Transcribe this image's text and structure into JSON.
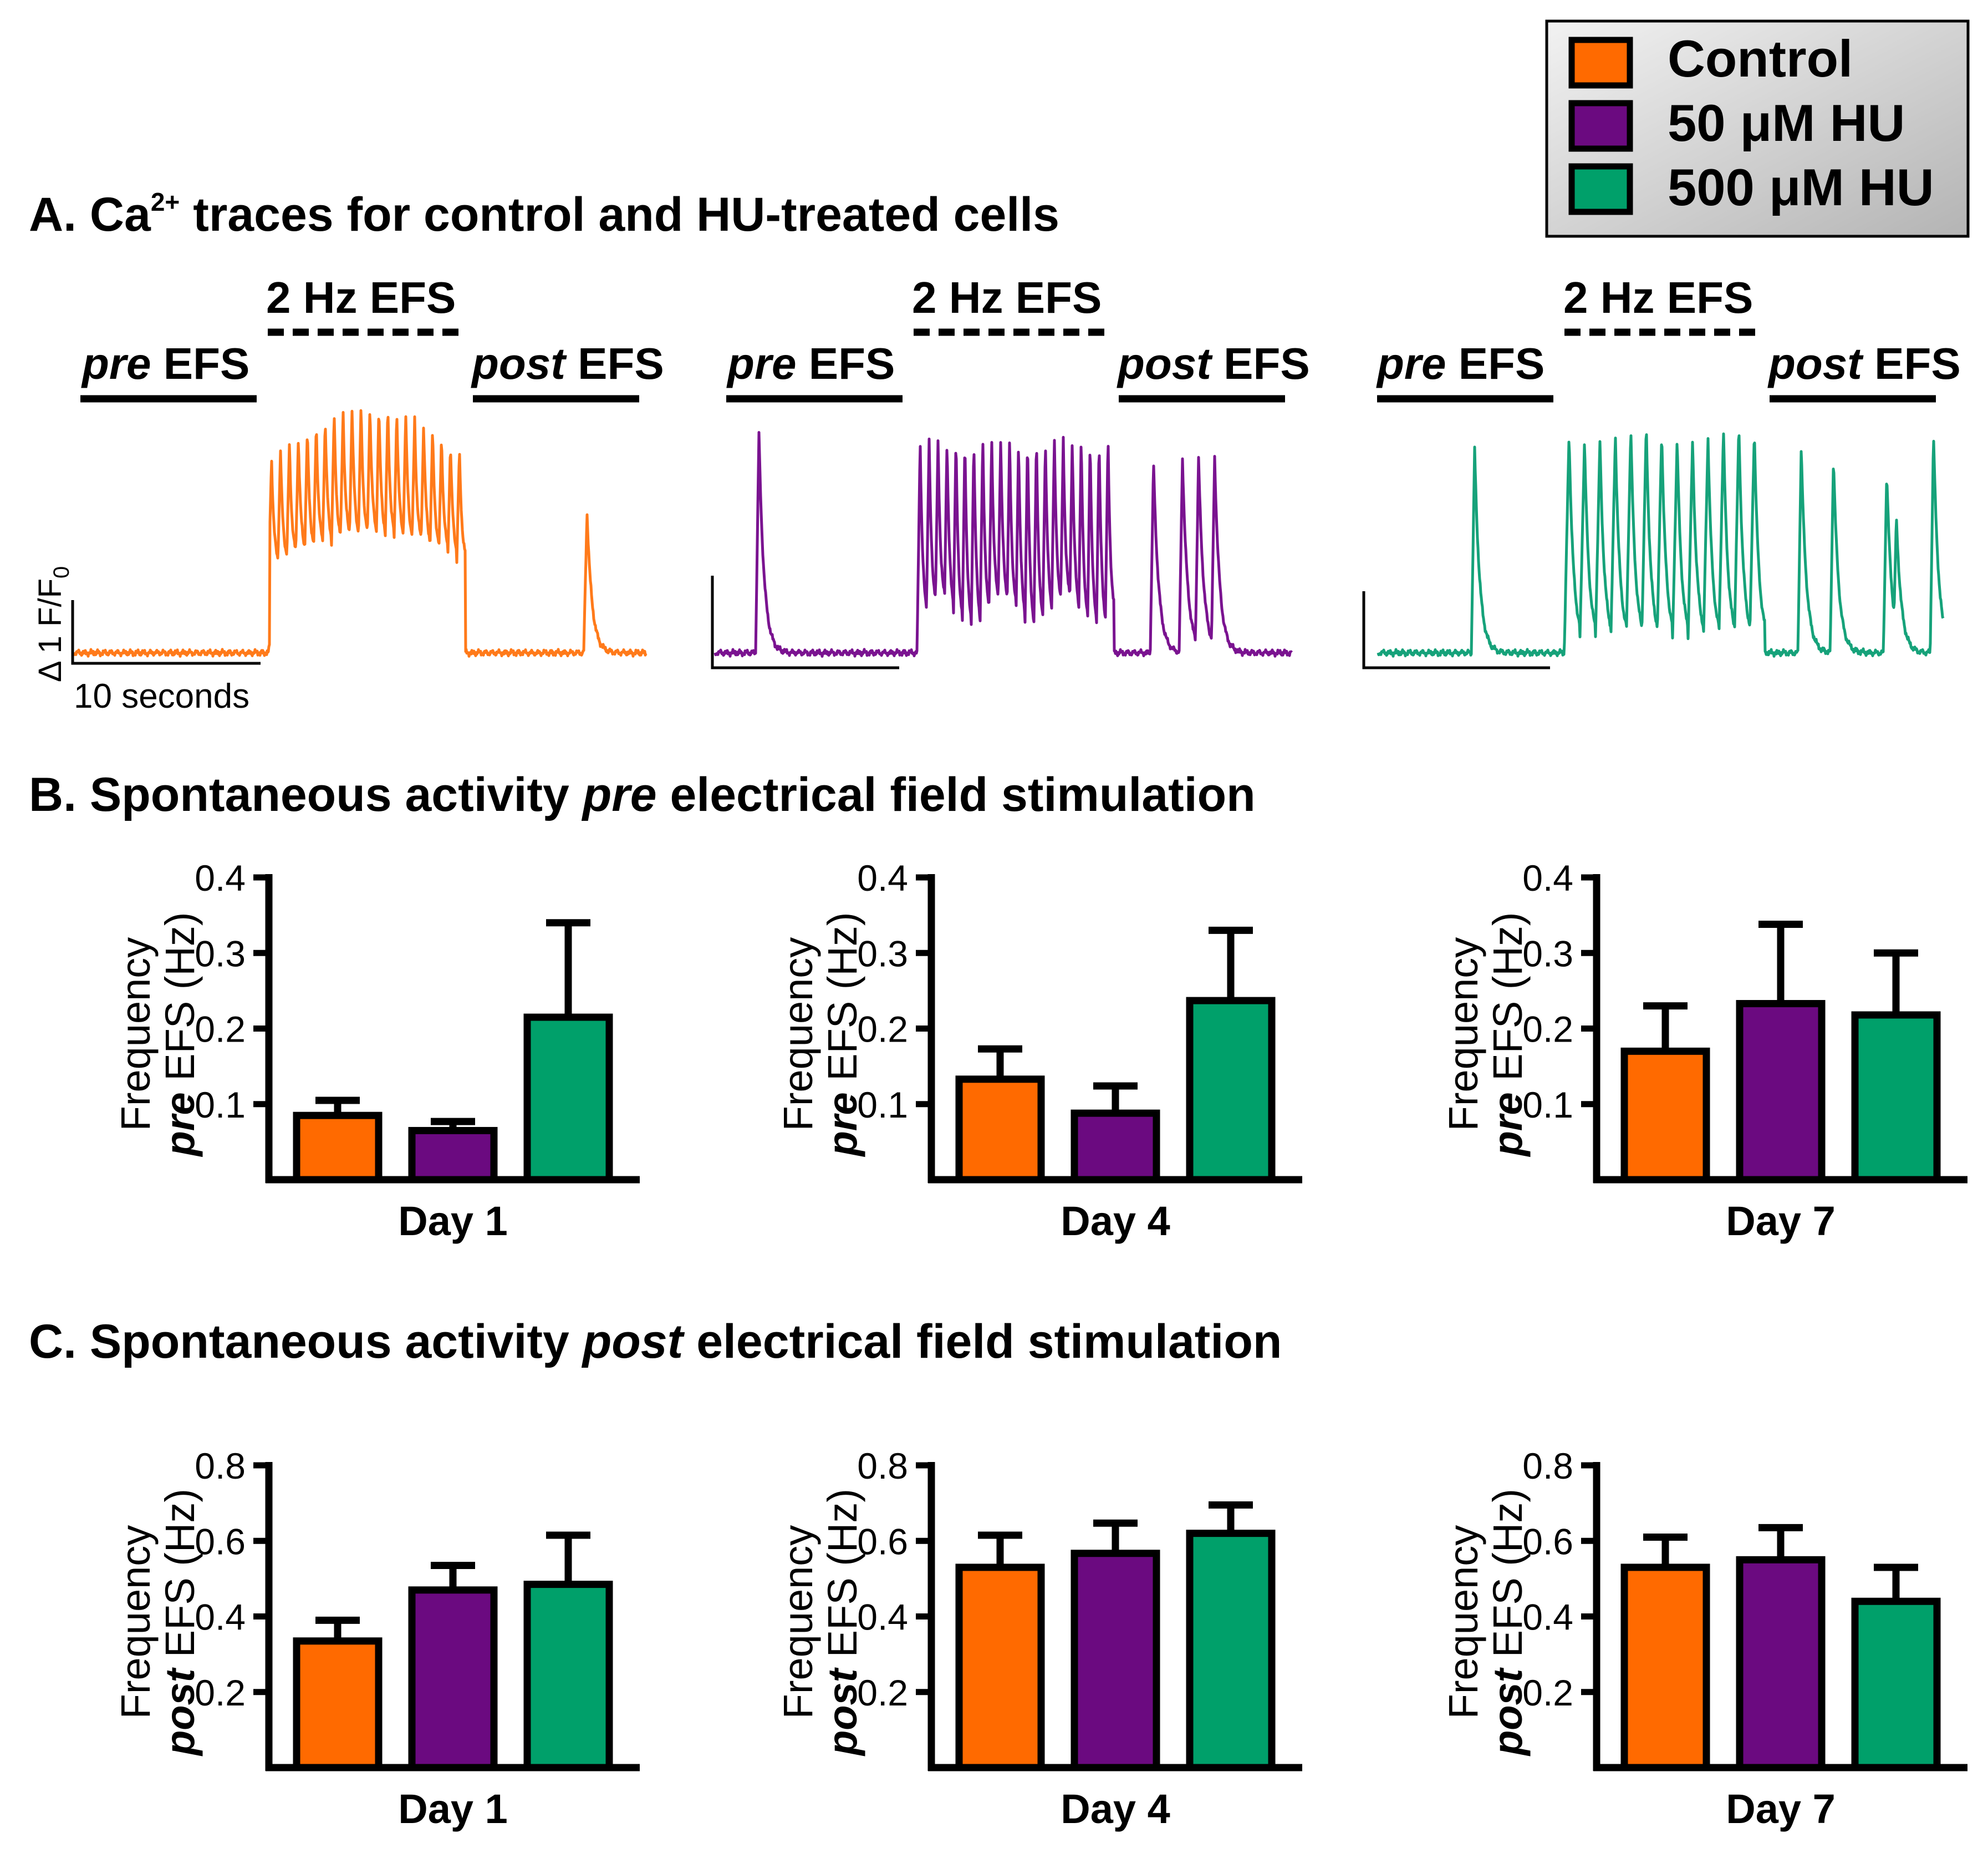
{
  "legend": {
    "items": [
      {
        "label": "Control",
        "color": "#FF6A00"
      },
      {
        "label": "50 μM HU",
        "color": "#6B0A80"
      },
      {
        "label": "500 μM HU",
        "color": "#00A06A"
      }
    ]
  },
  "section_a": {
    "title_prefix": "A. Ca",
    "title_sup": "2+",
    "title_rest": " traces for control and HU-treated cells",
    "stim_label": "2 Hz EFS",
    "pre_label_em": "pre",
    "post_label_em": "post",
    "efs_word": " EFS",
    "scale_y_label": "Δ 1 F/F",
    "scale_y_sub": "0",
    "scale_x_label": "10 seconds"
  },
  "section_b": {
    "title_prefix": "B. Spontaneous activity ",
    "title_em": "pre",
    "title_rest": " electrical field stimulation",
    "ylabel_line1": "Frequency",
    "ylabel_em": "pre",
    "ylabel_rest": " EFS (Hz)"
  },
  "section_c": {
    "title_prefix": "C. Spontaneous activity ",
    "title_em": "post",
    "title_rest": " electrical field stimulation",
    "ylabel_line1": "Frequency",
    "ylabel_em": "post",
    "ylabel_rest": " EFS (Hz)"
  },
  "chart_data": [
    {
      "type": "bar",
      "panel": "B",
      "title": "Day 1",
      "xlabel": "Day 1",
      "ylabel": "Frequency pre EFS (Hz)",
      "ylim": [
        0,
        0.4
      ],
      "yticks": [
        "0.1",
        "0.2",
        "0.3",
        "0.4"
      ],
      "series": [
        {
          "name": "Control",
          "value": 0.085,
          "error": 0.02
        },
        {
          "name": "50 μM HU",
          "value": 0.065,
          "error": 0.012
        },
        {
          "name": "500 μM HU",
          "value": 0.215,
          "error": 0.125
        }
      ]
    },
    {
      "type": "bar",
      "panel": "B",
      "title": "Day 4",
      "xlabel": "Day 4",
      "ylabel": "Frequency pre EFS (Hz)",
      "ylim": [
        0,
        0.4
      ],
      "yticks": [
        "0.1",
        "0.2",
        "0.3",
        "0.4"
      ],
      "series": [
        {
          "name": "Control",
          "value": 0.133,
          "error": 0.04
        },
        {
          "name": "50 μM HU",
          "value": 0.088,
          "error": 0.036
        },
        {
          "name": "500 μM HU",
          "value": 0.237,
          "error": 0.093
        }
      ]
    },
    {
      "type": "bar",
      "panel": "B",
      "title": "Day 7",
      "xlabel": "Day 7",
      "ylabel": "Frequency pre EFS (Hz)",
      "ylim": [
        0,
        0.4
      ],
      "yticks": [
        "0.1",
        "0.2",
        "0.3",
        "0.4"
      ],
      "series": [
        {
          "name": "Control",
          "value": 0.17,
          "error": 0.06
        },
        {
          "name": "50 μM HU",
          "value": 0.233,
          "error": 0.105
        },
        {
          "name": "500 μM HU",
          "value": 0.218,
          "error": 0.082
        }
      ]
    },
    {
      "type": "bar",
      "panel": "C",
      "title": "Day 1",
      "xlabel": "Day 1",
      "ylabel": "Frequency post EFS (Hz)",
      "ylim": [
        0,
        0.8
      ],
      "yticks": [
        "0.2",
        "0.4",
        "0.6",
        "0.8"
      ],
      "series": [
        {
          "name": "Control",
          "value": 0.335,
          "error": 0.055
        },
        {
          "name": "50 μM HU",
          "value": 0.47,
          "error": 0.065
        },
        {
          "name": "500 μM HU",
          "value": 0.485,
          "error": 0.13
        }
      ]
    },
    {
      "type": "bar",
      "panel": "C",
      "title": "Day 4",
      "xlabel": "Day 4",
      "ylabel": "Frequency post EFS (Hz)",
      "ylim": [
        0,
        0.8
      ],
      "yticks": [
        "0.2",
        "0.4",
        "0.6",
        "0.8"
      ],
      "series": [
        {
          "name": "Control",
          "value": 0.53,
          "error": 0.085
        },
        {
          "name": "50 μM HU",
          "value": 0.567,
          "error": 0.08
        },
        {
          "name": "500 μM HU",
          "value": 0.62,
          "error": 0.075
        }
      ]
    },
    {
      "type": "bar",
      "panel": "C",
      "title": "Day 7",
      "xlabel": "Day 7",
      "ylabel": "Frequency post EFS (Hz)",
      "ylim": [
        0,
        0.8
      ],
      "yticks": [
        "0.2",
        "0.4",
        "0.6",
        "0.8"
      ],
      "series": [
        {
          "name": "Control",
          "value": 0.53,
          "error": 0.08
        },
        {
          "name": "50 μM HU",
          "value": 0.55,
          "error": 0.085
        },
        {
          "name": "500 μM HU",
          "value": 0.44,
          "error": 0.09
        }
      ]
    }
  ],
  "traces": [
    {
      "name": "Control",
      "color": "#FF7A1A",
      "pre_peaks": [],
      "stim_peaks": 22,
      "stim_pattern": "large",
      "post_peaks": [
        {
          "t": 0.62,
          "h": 0.54
        }
      ]
    },
    {
      "name": "50 μM HU",
      "color": "#7A1390",
      "pre_peaks": [
        {
          "t": 0.2,
          "h": 0.9
        }
      ],
      "stim_peaks": 22,
      "stim_pattern": "medium",
      "post_peaks": [
        {
          "t": 0.12,
          "h": 0.78
        },
        {
          "t": 0.3,
          "h": 0.8
        },
        {
          "t": 0.4,
          "h": 0.8
        },
        {
          "t": 0.5,
          "h": 0.8
        }
      ]
    },
    {
      "name": "500 μM HU",
      "color": "#16A27A",
      "pre_peaks": [
        {
          "t": 0.5,
          "h": 0.8
        }
      ],
      "stim_peaks": 13,
      "stim_pattern": "green",
      "post_peaks": [
        {
          "t": 0.1,
          "h": 0.81
        },
        {
          "t": 0.3,
          "h": 0.77
        },
        {
          "t": 0.63,
          "h": 0.71
        },
        {
          "t": 0.69,
          "h": 0.53
        },
        {
          "t": 0.92,
          "h": 0.86
        }
      ]
    }
  ]
}
